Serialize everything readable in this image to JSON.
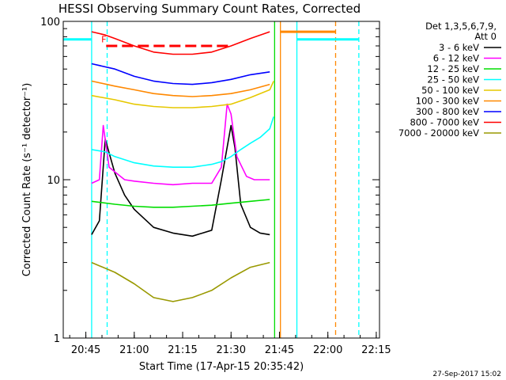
{
  "chart_data": {
    "type": "line",
    "title": "HESSI Observing Summary Count Rates, Corrected",
    "xlabel": "Start Time (17-Apr-15 20:35:42)",
    "ylabel": "Corrected Count Rate (s⁻¹ detector⁻¹)",
    "y_scale": "log",
    "ylim": [
      1,
      100
    ],
    "xlim": [
      20.6333,
      22.2667
    ],
    "x_ticks": [
      {
        "label": "20:45",
        "value": 20.75
      },
      {
        "label": "21:00",
        "value": 21.0
      },
      {
        "label": "21:15",
        "value": 21.25
      },
      {
        "label": "21:30",
        "value": 21.5
      },
      {
        "label": "21:45",
        "value": 21.75
      },
      {
        "label": "22:00",
        "value": 22.0
      },
      {
        "label": "22:15",
        "value": 22.25
      }
    ],
    "y_ticks": [
      {
        "label": "1",
        "value": 1
      },
      {
        "label": "10",
        "value": 10
      },
      {
        "label": "100",
        "value": 100
      }
    ],
    "legend_header": [
      "Det 1,3,5,6,7,9,",
      "Att 0"
    ],
    "series": [
      {
        "name": "3 - 6 keV",
        "color": "#000000",
        "x": [
          20.78,
          20.82,
          20.85,
          20.9,
          20.95,
          21.0,
          21.1,
          21.2,
          21.3,
          21.4,
          21.45,
          21.5,
          21.52,
          21.55,
          21.6,
          21.65,
          21.7
        ],
        "y": [
          4.5,
          5.5,
          18,
          11,
          8,
          6.5,
          5.0,
          4.6,
          4.4,
          4.8,
          10,
          22,
          16,
          7,
          5.0,
          4.6,
          4.5
        ]
      },
      {
        "name": "6 - 12 keV",
        "color": "#ff00ff",
        "x": [
          20.78,
          20.82,
          20.84,
          20.87,
          20.95,
          21.0,
          21.1,
          21.2,
          21.3,
          21.4,
          21.45,
          21.48,
          21.5,
          21.53,
          21.58,
          21.62,
          21.7
        ],
        "y": [
          9.5,
          10,
          22,
          12,
          10,
          9.8,
          9.5,
          9.3,
          9.5,
          9.5,
          12,
          30,
          26,
          14,
          10.5,
          10,
          10
        ]
      },
      {
        "name": "12 - 25 keV",
        "color": "#00dd00",
        "x": [
          20.78,
          20.9,
          21.0,
          21.1,
          21.2,
          21.3,
          21.4,
          21.5,
          21.6,
          21.7
        ],
        "y": [
          7.3,
          7.0,
          6.8,
          6.7,
          6.7,
          6.8,
          6.9,
          7.1,
          7.3,
          7.5
        ]
      },
      {
        "name": "25 - 50 keV",
        "color": "#00ffff",
        "x": [
          20.78,
          20.85,
          20.9,
          21.0,
          21.1,
          21.2,
          21.3,
          21.4,
          21.45,
          21.5,
          21.55,
          21.6,
          21.65,
          21.7,
          21.72
        ],
        "y": [
          15.5,
          15.0,
          14.0,
          12.8,
          12.2,
          12.0,
          12.0,
          12.5,
          13,
          14,
          15.5,
          17,
          18.5,
          21,
          25
        ]
      },
      {
        "name": "50 - 100 keV",
        "color": "#e6c800",
        "x": [
          20.78,
          20.9,
          21.0,
          21.1,
          21.2,
          21.3,
          21.4,
          21.5,
          21.6,
          21.7,
          21.72
        ],
        "y": [
          34,
          32,
          30,
          29,
          28.5,
          28.5,
          29,
          30,
          33,
          37,
          42
        ]
      },
      {
        "name": "100 - 300 keV",
        "color": "#ff8800",
        "x": [
          20.78,
          20.9,
          21.0,
          21.1,
          21.2,
          21.3,
          21.4,
          21.5,
          21.6,
          21.7
        ],
        "y": [
          42,
          39,
          37,
          35,
          34,
          33.5,
          34,
          35,
          37,
          40
        ]
      },
      {
        "name": "300 - 800 keV",
        "color": "#0000ff",
        "x": [
          20.78,
          20.9,
          21.0,
          21.1,
          21.2,
          21.3,
          21.4,
          21.5,
          21.6,
          21.7
        ],
        "y": [
          54,
          50,
          45,
          42,
          40.5,
          40,
          41,
          43,
          46,
          48
        ]
      },
      {
        "name": "800 - 7000 keV",
        "color": "#ff0000",
        "x": [
          20.78,
          20.85,
          20.9,
          21.0,
          21.1,
          21.2,
          21.3,
          21.4,
          21.5,
          21.6,
          21.7
        ],
        "y": [
          86,
          82,
          78,
          70,
          64,
          62,
          62,
          64,
          70,
          78,
          86
        ]
      },
      {
        "name": "7000 - 20000 keV",
        "color": "#999900",
        "x": [
          20.78,
          20.9,
          21.0,
          21.1,
          21.2,
          21.3,
          21.4,
          21.5,
          21.6,
          21.7
        ],
        "y": [
          3.0,
          2.6,
          2.2,
          1.8,
          1.7,
          1.8,
          2.0,
          2.4,
          2.8,
          3.0
        ]
      }
    ],
    "flag_segments": [
      {
        "name": "cyan",
        "color": "#00ffff",
        "x": [
          [
            20.6333,
            20.78
          ],
          [
            21.84,
            22.16
          ]
        ],
        "y": 77
      },
      {
        "name": "orange",
        "color": "#ff8800",
        "x": [
          [
            21.755,
            22.04
          ]
        ],
        "y": 86
      },
      {
        "name": "red",
        "color": "#ff0000",
        "x": [
          [
            20.855,
            21.5
          ]
        ],
        "y": 70
      }
    ],
    "vertical_markers": [
      {
        "x": 20.78,
        "color": "#00ffff",
        "style": "solid"
      },
      {
        "x": 20.86,
        "color": "#00ffff",
        "style": "dashed"
      },
      {
        "x": 21.725,
        "color": "#00dd00",
        "style": "solid"
      },
      {
        "x": 21.755,
        "color": "#ff8800",
        "style": "solid"
      },
      {
        "x": 21.84,
        "color": "#00ffff",
        "style": "solid"
      },
      {
        "x": 22.04,
        "color": "#ff8800",
        "style": "dashed"
      },
      {
        "x": 22.16,
        "color": "#00ffff",
        "style": "dashed"
      }
    ],
    "annotations": [
      {
        "text": "F",
        "x": 20.83,
        "y": 77,
        "color": "#ff0000"
      }
    ],
    "timestamp": "27-Sep-2017 15:02"
  }
}
